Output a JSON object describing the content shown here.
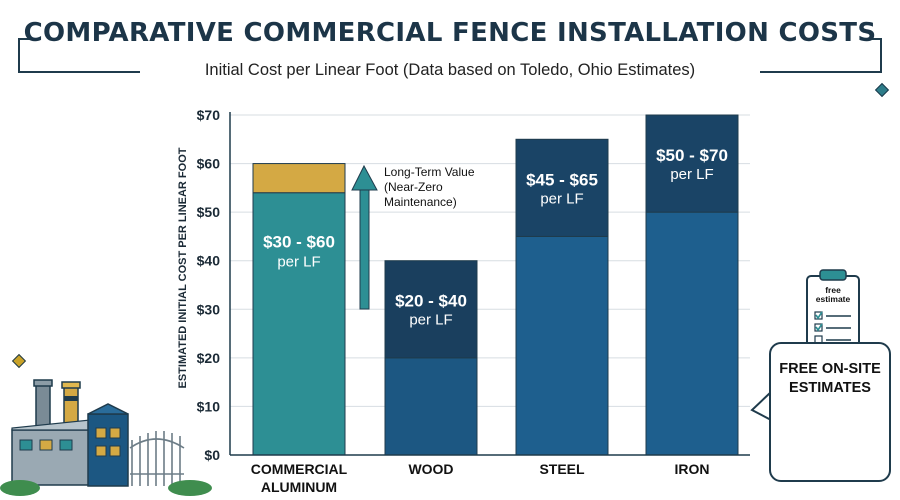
{
  "header": {
    "title": "COMPARATIVE COMMERCIAL FENCE INSTALLATION COSTS",
    "subtitle": "Initial Cost per Linear Foot (Data based on Toledo, Ohio Estimates)"
  },
  "chart_data": {
    "type": "bar",
    "ylabel": "ESTIMATED INITIAL COST PER LINEAR FOOT",
    "ylim": [
      0,
      70
    ],
    "yticks": [
      "$0",
      "$10",
      "$20",
      "$30",
      "$40",
      "$50",
      "$60",
      "$70"
    ],
    "grid": true,
    "categories": [
      "COMMERCIAL ALUMINUM",
      "WOOD",
      "STEEL",
      "IRON"
    ],
    "ranges": [
      {
        "low": 30,
        "high": 60,
        "label": "$30 - $60",
        "unit": "per LF"
      },
      {
        "low": 20,
        "high": 40,
        "label": "$20 - $40",
        "unit": "per LF"
      },
      {
        "low": 45,
        "high": 65,
        "label": "$45 - $65",
        "unit": "per LF"
      },
      {
        "low": 50,
        "high": 70,
        "label": "$50 - $70",
        "unit": "per LF"
      }
    ],
    "colors": {
      "aluminum_base": "#2d8f94",
      "aluminum_top": "#d4a944",
      "wood_base": "#1c5782",
      "wood_top": "#1a3f5e",
      "steel_base": "#1e5f8e",
      "steel_top": "#1a4466",
      "iron_base": "#1e5f8e",
      "iron_top": "#1a4466"
    },
    "annotation": "Long-Term Value (Near-Zero Maintenance)"
  },
  "callout": {
    "clipboard_label": "free estimate",
    "text": "FREE ON-SITE ESTIMATES"
  },
  "colors": {
    "frame": "#1f3b4c",
    "diamond_gold": "#c9a227",
    "diamond_teal": "#2d7d8a"
  },
  "icons": [
    "factory-icon",
    "clipboard-icon",
    "handshake-icon"
  ]
}
